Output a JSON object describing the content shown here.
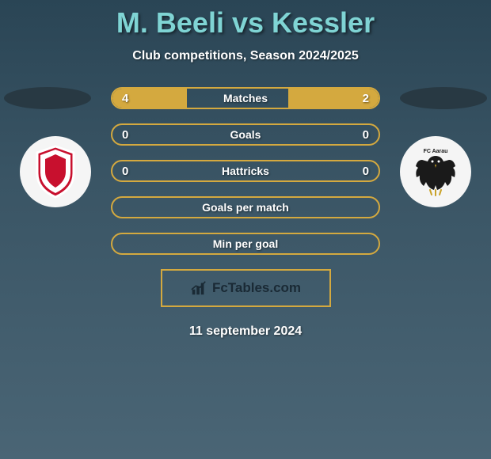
{
  "header": {
    "title": "M. Beeli vs Kessler",
    "subtitle": "Club competitions, Season 2024/2025"
  },
  "stats": [
    {
      "label": "Matches",
      "left_val": "4",
      "right_val": "2",
      "left_pct": 28,
      "right_pct": 34
    },
    {
      "label": "Goals",
      "left_val": "0",
      "right_val": "0",
      "left_pct": 0,
      "right_pct": 0
    },
    {
      "label": "Hattricks",
      "left_val": "0",
      "right_val": "0",
      "left_pct": 0,
      "right_pct": 0
    },
    {
      "label": "Goals per match",
      "left_val": "",
      "right_val": "",
      "left_pct": 0,
      "right_pct": 0
    },
    {
      "label": "Min per goal",
      "left_val": "",
      "right_val": "",
      "left_pct": 0,
      "right_pct": 0
    }
  ],
  "branding": {
    "site_name": "FcTables.com"
  },
  "date": "11 september 2024",
  "colors": {
    "accent": "#d4a93f",
    "title": "#7fd4d4",
    "text": "#ffffff",
    "ellipse": "#283943",
    "logo_bg": "#f5f5f5",
    "bg_top": "#2a4555",
    "bg_bottom": "#4a6575",
    "shield_red": "#c8102e",
    "eagle_black": "#1a1a1a",
    "eagle_gold": "#c9a227"
  },
  "team_logos": {
    "left": "vaduz-shield",
    "right": "aarau-eagle"
  }
}
